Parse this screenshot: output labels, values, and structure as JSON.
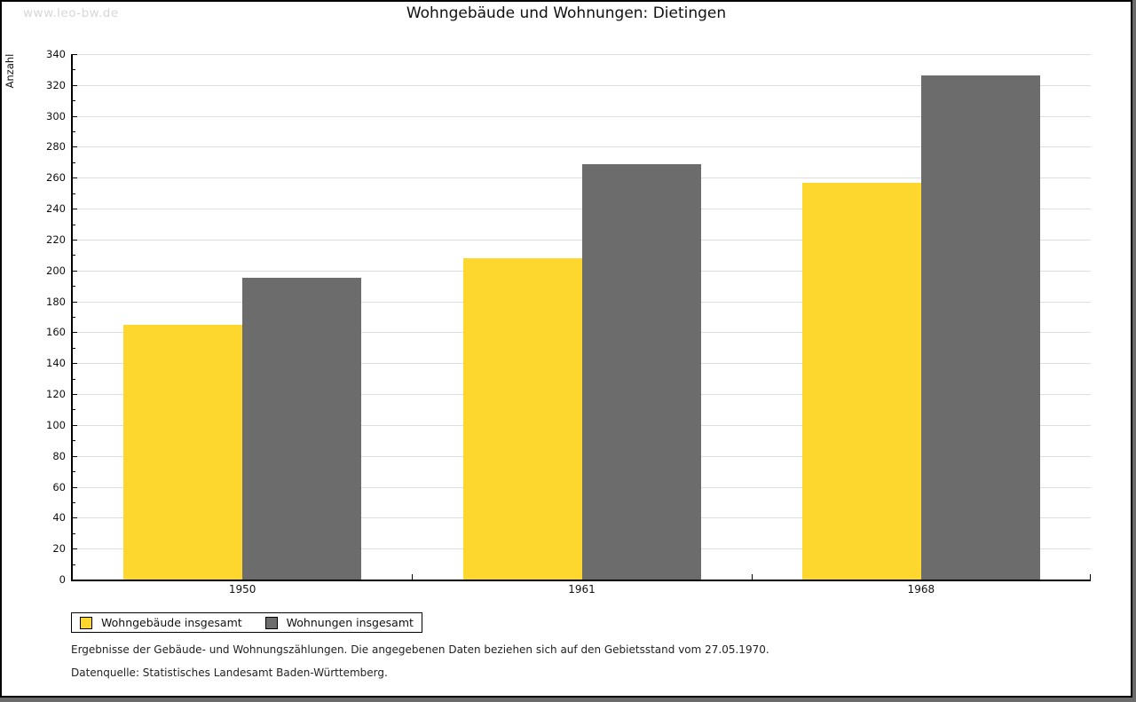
{
  "watermark": "www.leo-bw.de",
  "title": "Wohngebäude und Wohnungen: Dietingen",
  "chart_data": {
    "type": "bar",
    "title": "Wohngebäude und Wohnungen: Dietingen",
    "xlabel": "",
    "ylabel": "Anzahl",
    "categories": [
      "1950",
      "1961",
      "1968"
    ],
    "series": [
      {
        "name": "Wohngebäude insgesamt",
        "color": "#FDD62E",
        "values": [
          165,
          208,
          257
        ]
      },
      {
        "name": "Wohnungen insgesamt",
        "color": "#6C6C6C",
        "values": [
          195,
          269,
          326
        ]
      }
    ],
    "ylim": [
      0,
      340
    ],
    "y_major_step": 20,
    "y_minor_step": 10,
    "grid": true,
    "legend_position": "bottom-left",
    "colors": {
      "axis": "#000000",
      "gridline": "#dedede",
      "background": "#ffffff",
      "frame_shadow": "#6b6b6b"
    }
  },
  "footnotes": [
    "Ergebnisse der Gebäude- und Wohnungszählungen. Die angegebenen Daten beziehen sich auf den Gebietsstand vom 27.05.1970.",
    "Datenquelle: Statistisches Landesamt Baden-Württemberg."
  ]
}
